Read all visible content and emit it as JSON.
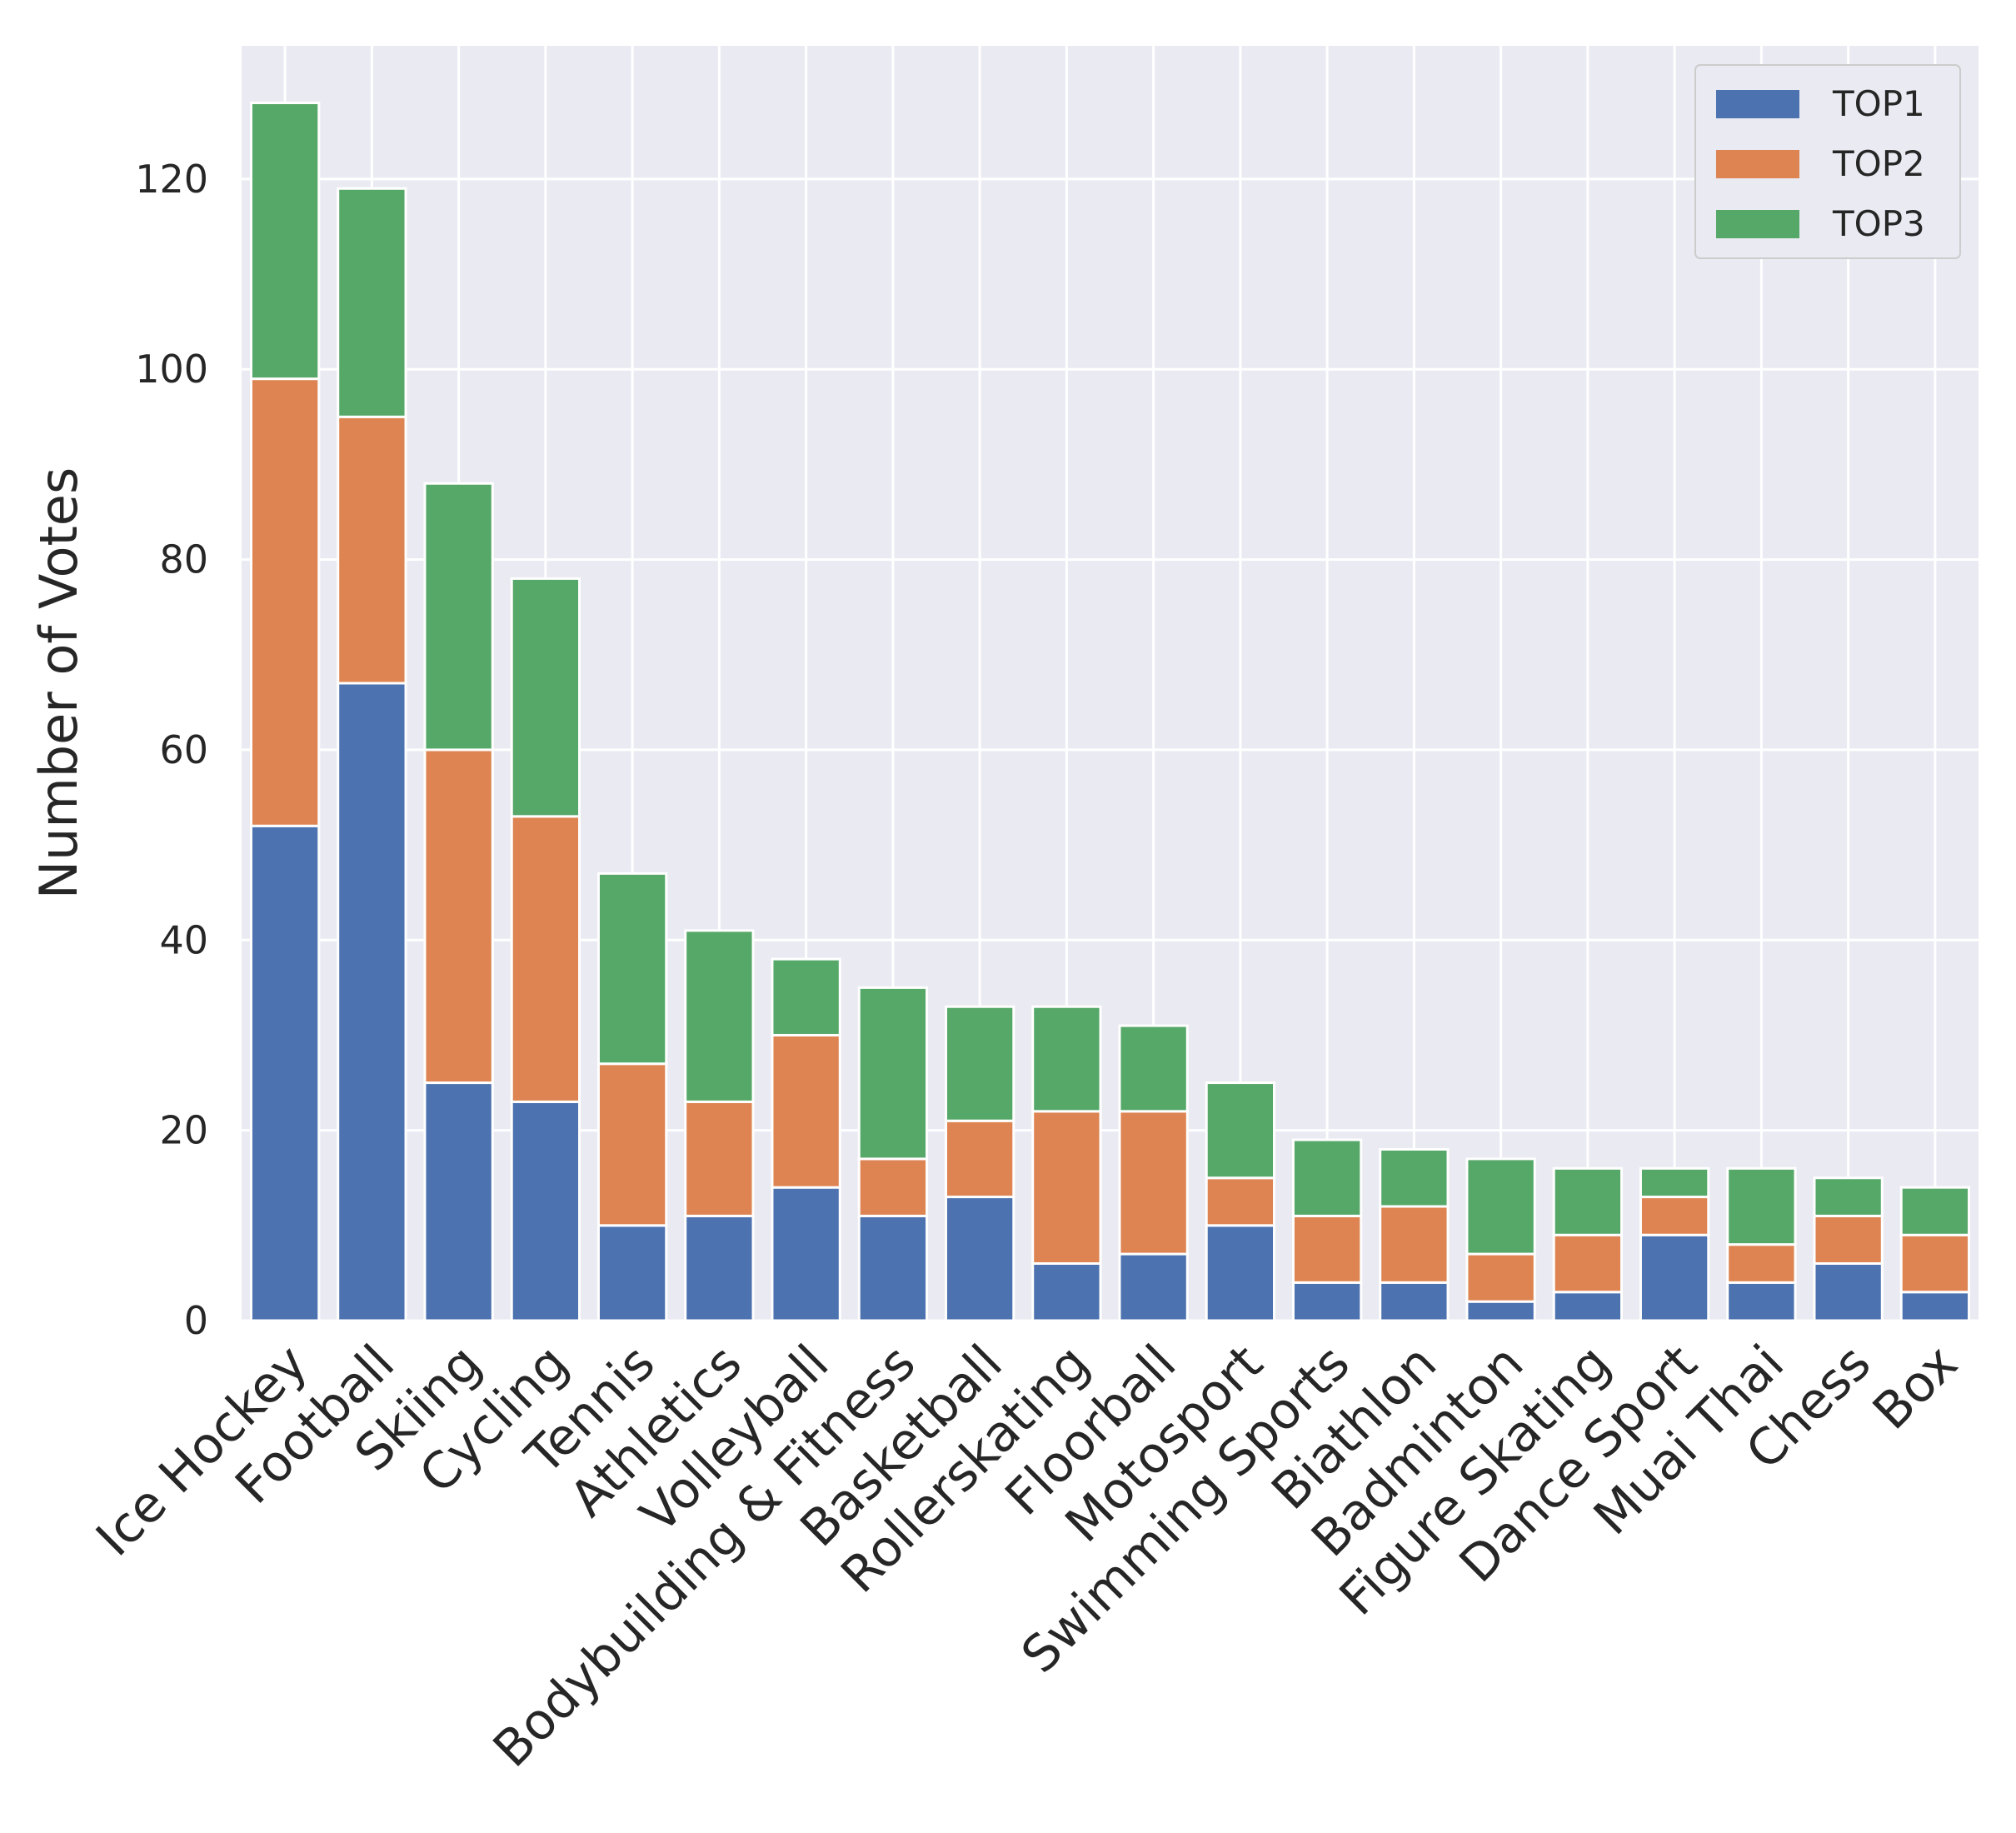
{
  "chart_data": {
    "type": "bar",
    "stacked": true,
    "title": "",
    "xlabel": "",
    "ylabel": "Number of Votes",
    "ylim": [
      0,
      134
    ],
    "yticks": [
      0,
      20,
      40,
      60,
      80,
      100,
      120
    ],
    "grid": true,
    "legend_position": "top-right",
    "categories": [
      "Ice Hockey",
      "Football",
      "Skiing",
      "Cycling",
      "Tennis",
      "Athletics",
      "Volleyball",
      "Bodybuilding & Fitness",
      "Basketball",
      "Rollerskating",
      "Floorball",
      "Motosport",
      "Swimming Sports",
      "Biathlon",
      "Badminton",
      "Figure Skating",
      "Dance Sport",
      "Muai Thai",
      "Chess",
      "Box"
    ],
    "series": [
      {
        "name": "TOP1",
        "color": "#4c72b0",
        "values": [
          52,
          67,
          25,
          23,
          10,
          11,
          14,
          11,
          13,
          6,
          7,
          10,
          4,
          4,
          2,
          3,
          9,
          4,
          6,
          3
        ]
      },
      {
        "name": "TOP2",
        "color": "#dd8452",
        "values": [
          47,
          28,
          35,
          30,
          17,
          12,
          16,
          6,
          8,
          16,
          15,
          5,
          7,
          8,
          5,
          6,
          4,
          4,
          5,
          6
        ]
      },
      {
        "name": "TOP3",
        "color": "#55a868",
        "values": [
          29,
          24,
          28,
          25,
          20,
          18,
          8,
          18,
          12,
          11,
          9,
          10,
          8,
          6,
          10,
          7,
          3,
          8,
          4,
          5
        ]
      }
    ]
  }
}
